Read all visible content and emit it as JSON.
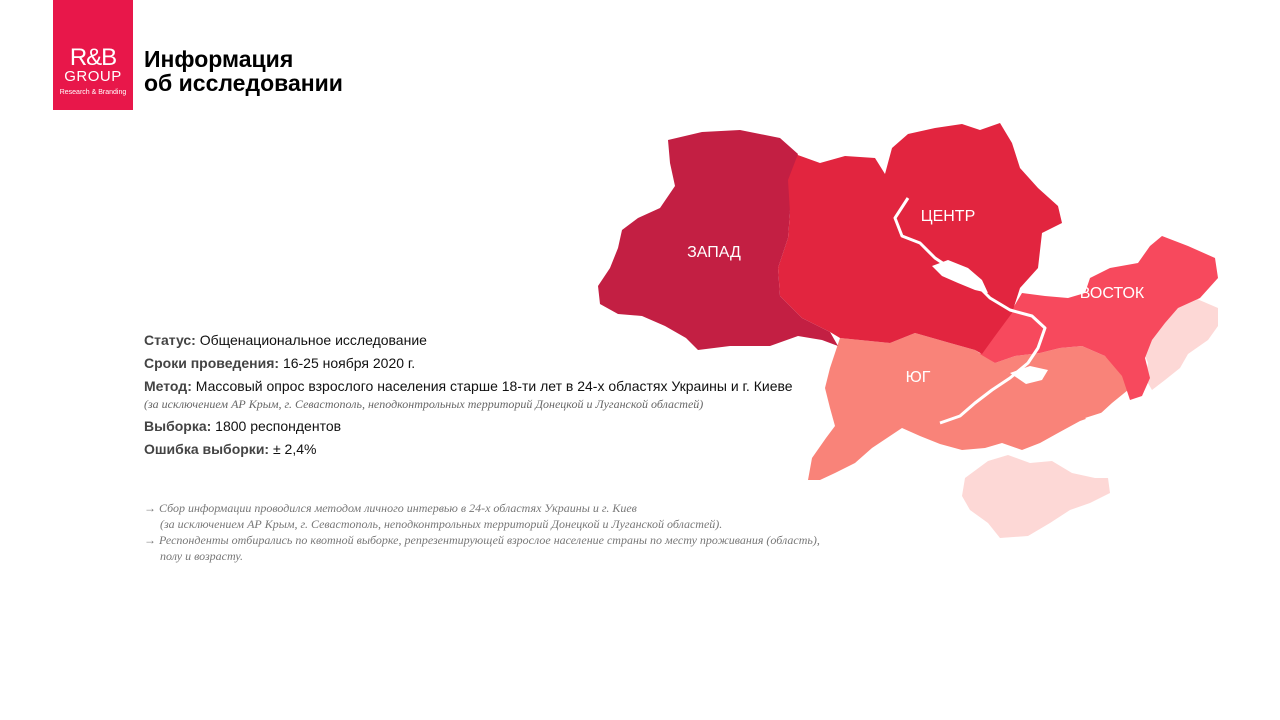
{
  "logo": {
    "line1": "R&B",
    "line2": "GROUP",
    "line3": "Research & Branding"
  },
  "title": {
    "line1": "Информация",
    "line2": "об исследовании"
  },
  "map": {
    "regions": [
      {
        "name": "ЗАПАД",
        "color": "#c31f43"
      },
      {
        "name": "ЦЕНТР",
        "color": "#e2253f"
      },
      {
        "name": "ВОСТОК",
        "color": "#f7495d"
      },
      {
        "name": "ЮГ",
        "color": "#f98379"
      }
    ],
    "excluded_color": "#fdd8d6"
  },
  "info": {
    "status_label": "Статус:",
    "status_value": " Общенациональное исследование",
    "dates_label": "Сроки проведения:",
    "dates_value": " 16-25 ноября 2020 г.",
    "method_label": "Метод:",
    "method_value": " Массовый опрос взрослого населения старше 18-ти лет в 24-х областях Украины и г. Киеве",
    "method_note": "(за исключением АР Крым, г. Севастополь, неподконтрольных территорий Донецкой и Луганской областей)",
    "sample_label": "Выборка:",
    "sample_value": " 1800 респондентов",
    "error_label": "Ошибка выборки:",
    "error_value": " ± 2,4%"
  },
  "notes": {
    "n1": "→ Сбор информации проводился методом личного интервью в 24-х областях Украины и г. Киев",
    "n1b": "(за исключением АР Крым, г. Севастополь, неподконтрольных территорий Донецкой и Луганской областей).",
    "n2": "→ Респонденты отбирались по квотной выборке, репрезентирующей взрослое население страны по месту проживания (область),",
    "n2b": "полу и возрасту."
  }
}
